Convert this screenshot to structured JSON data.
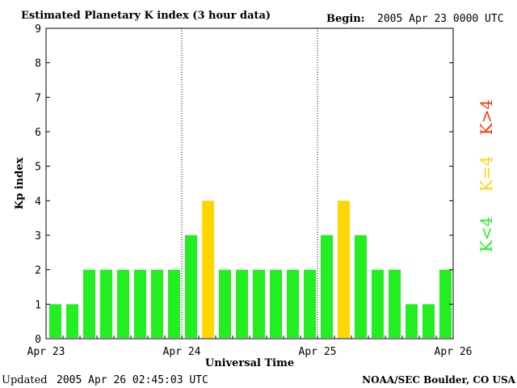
{
  "header": {
    "title": "Estimated Planetary K index (3 hour data)",
    "begin_label": "Begin:",
    "begin_value": "2005 Apr 23 0000 UTC"
  },
  "footer": {
    "updated_label": "Updated",
    "updated_value": "2005 Apr 26 02:45:03 UTC",
    "credit": "NOAA/SEC Boulder, CO USA"
  },
  "legend": [
    {
      "text": "K>4",
      "color": "#ff3300"
    },
    {
      "text": "K=4",
      "color": "#ffd700"
    },
    {
      "text": "K<4",
      "color": "#22ee22"
    }
  ],
  "chart_data": {
    "type": "bar",
    "title": "Estimated Planetary K index (3 hour data)",
    "xlabel": "Universal Time",
    "ylabel": "Kp index",
    "ylim": [
      0,
      9
    ],
    "yticks": [
      "0",
      "1",
      "2",
      "3",
      "4",
      "5",
      "6",
      "7",
      "8",
      "9"
    ],
    "xticks": [
      "Apr 23",
      "Apr 24",
      "Apr 25",
      "Apr 26"
    ],
    "interval_hours": 3,
    "values": [
      1,
      1,
      2,
      2,
      2,
      2,
      2,
      2,
      3,
      4,
      2,
      2,
      2,
      2,
      2,
      2,
      3,
      4,
      3,
      2,
      2,
      1,
      1,
      2
    ],
    "color_rules": {
      "below_4": "#22ee22",
      "equal_4": "#ffd700",
      "above_4": "#ff3300"
    },
    "day_separators": "dotted"
  }
}
